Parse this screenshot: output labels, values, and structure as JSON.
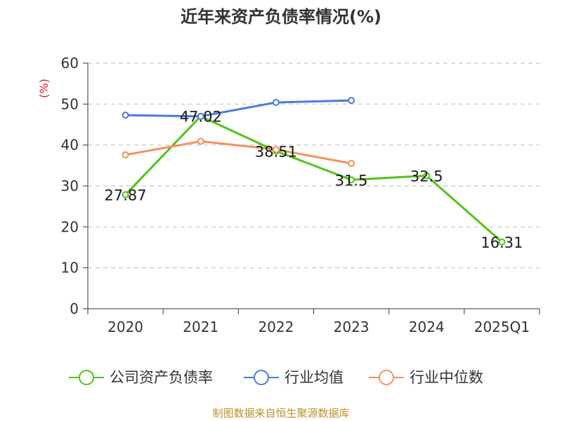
{
  "chart_data": {
    "type": "line",
    "title": "近年来资产负债率情况(%)",
    "ylabel": "(%)",
    "xlabel": "",
    "categories": [
      "2020",
      "2021",
      "2022",
      "2023",
      "2024",
      "2025Q1"
    ],
    "ylim": [
      0,
      60
    ],
    "yticks": [
      0,
      10,
      20,
      30,
      40,
      50,
      60
    ],
    "grid": "horizontal dashed",
    "legend_position": "bottom",
    "series": [
      {
        "name": "公司资产负债率",
        "color": "#52c41a",
        "values": [
          27.87,
          47.02,
          38.51,
          31.5,
          32.5,
          16.31
        ],
        "labels": [
          "27.87",
          "47.02",
          "38.51",
          "31.5",
          "32.5",
          "16.31"
        ]
      },
      {
        "name": "行业均值",
        "color": "#4a7bdc",
        "values": [
          47.3,
          47.0,
          50.4,
          50.9,
          null,
          null
        ]
      },
      {
        "name": "行业中位数",
        "color": "#f5905e",
        "values": [
          37.6,
          40.9,
          38.9,
          35.5,
          null,
          null
        ]
      }
    ],
    "source": "制图数据来自恒生聚源数据库"
  }
}
